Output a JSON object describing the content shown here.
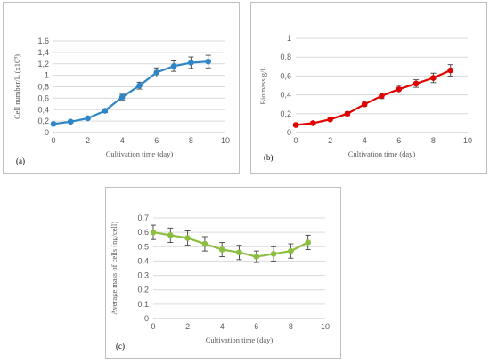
{
  "chart_data": [
    {
      "type": "line",
      "panel_label": "(a)",
      "xlabel": "Cultivation time (day)",
      "ylabel": "Cell number/L (x10⁹)",
      "xlim": [
        0,
        10
      ],
      "ylim": [
        0,
        1.6
      ],
      "x_ticks": [
        "0",
        "2",
        "4",
        "6",
        "8",
        "10"
      ],
      "y_ticks": [
        "0",
        "0,2",
        "0,4",
        "0,6",
        "0,8",
        "1",
        "1,2",
        "1,4",
        "1,6"
      ],
      "color": "#2e86c8",
      "grid": true,
      "legend": "none",
      "series": [
        {
          "x": [
            0,
            1,
            2,
            3,
            4,
            5,
            6,
            7,
            8,
            9
          ],
          "y": [
            0.15,
            0.19,
            0.25,
            0.38,
            0.62,
            0.82,
            1.05,
            1.16,
            1.22,
            1.24
          ],
          "error": [
            0.02,
            0.02,
            0.02,
            0.03,
            0.05,
            0.06,
            0.08,
            0.09,
            0.1,
            0.11
          ]
        }
      ]
    },
    {
      "type": "line",
      "panel_label": "(b)",
      "xlabel": "Cultivation time (day)",
      "ylabel": "Biomass  g/L",
      "xlim": [
        0,
        10
      ],
      "ylim": [
        0,
        1
      ],
      "x_ticks": [
        "0",
        "2",
        "4",
        "6",
        "8",
        "10"
      ],
      "y_ticks": [
        "0",
        "0,2",
        "0,4",
        "0,6",
        "0,8",
        "1"
      ],
      "color": "#e00000",
      "grid": true,
      "legend": "none",
      "series": [
        {
          "x": [
            0,
            1,
            2,
            3,
            4,
            5,
            6,
            7,
            8,
            9
          ],
          "y": [
            0.08,
            0.1,
            0.14,
            0.2,
            0.3,
            0.39,
            0.46,
            0.52,
            0.58,
            0.66
          ],
          "error": [
            0.01,
            0.01,
            0.01,
            0.02,
            0.02,
            0.03,
            0.04,
            0.04,
            0.05,
            0.06
          ]
        }
      ]
    },
    {
      "type": "line",
      "panel_label": "(c)",
      "xlabel": "Cultivation time (day)",
      "ylabel": "Average mass of cells (ng/cell)",
      "xlim": [
        0,
        10
      ],
      "ylim": [
        0,
        0.7
      ],
      "x_ticks": [
        "0",
        "2",
        "4",
        "6",
        "8",
        "10"
      ],
      "y_ticks": [
        "0",
        "0,1",
        "0,2",
        "0,3",
        "0,4",
        "0,5",
        "0,6",
        "0,7"
      ],
      "color": "#8cbf3f",
      "grid": true,
      "legend": "none",
      "series": [
        {
          "x": [
            0,
            1,
            2,
            3,
            4,
            5,
            6,
            7,
            8,
            9
          ],
          "y": [
            0.6,
            0.58,
            0.56,
            0.52,
            0.48,
            0.46,
            0.43,
            0.45,
            0.47,
            0.53
          ],
          "error": [
            0.05,
            0.05,
            0.05,
            0.05,
            0.05,
            0.05,
            0.04,
            0.05,
            0.05,
            0.05
          ]
        }
      ]
    }
  ]
}
